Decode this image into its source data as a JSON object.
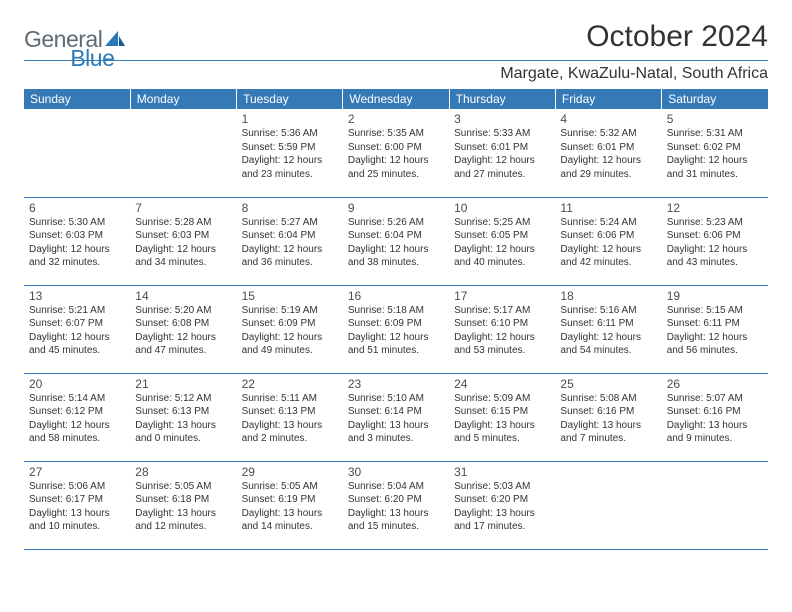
{
  "logo": {
    "general": "General",
    "blue": "Blue"
  },
  "title": "October 2024",
  "location": "Margate, KwaZulu-Natal, South Africa",
  "colors": {
    "header_bg": "#357ab7",
    "header_fg": "#ffffff",
    "rule": "#357ab7"
  },
  "day_headers": [
    "Sunday",
    "Monday",
    "Tuesday",
    "Wednesday",
    "Thursday",
    "Friday",
    "Saturday"
  ],
  "weeks": [
    [
      null,
      null,
      {
        "n": "1",
        "sr": "Sunrise: 5:36 AM",
        "ss": "Sunset: 5:59 PM",
        "d1": "Daylight: 12 hours",
        "d2": "and 23 minutes."
      },
      {
        "n": "2",
        "sr": "Sunrise: 5:35 AM",
        "ss": "Sunset: 6:00 PM",
        "d1": "Daylight: 12 hours",
        "d2": "and 25 minutes."
      },
      {
        "n": "3",
        "sr": "Sunrise: 5:33 AM",
        "ss": "Sunset: 6:01 PM",
        "d1": "Daylight: 12 hours",
        "d2": "and 27 minutes."
      },
      {
        "n": "4",
        "sr": "Sunrise: 5:32 AM",
        "ss": "Sunset: 6:01 PM",
        "d1": "Daylight: 12 hours",
        "d2": "and 29 minutes."
      },
      {
        "n": "5",
        "sr": "Sunrise: 5:31 AM",
        "ss": "Sunset: 6:02 PM",
        "d1": "Daylight: 12 hours",
        "d2": "and 31 minutes."
      }
    ],
    [
      {
        "n": "6",
        "sr": "Sunrise: 5:30 AM",
        "ss": "Sunset: 6:03 PM",
        "d1": "Daylight: 12 hours",
        "d2": "and 32 minutes."
      },
      {
        "n": "7",
        "sr": "Sunrise: 5:28 AM",
        "ss": "Sunset: 6:03 PM",
        "d1": "Daylight: 12 hours",
        "d2": "and 34 minutes."
      },
      {
        "n": "8",
        "sr": "Sunrise: 5:27 AM",
        "ss": "Sunset: 6:04 PM",
        "d1": "Daylight: 12 hours",
        "d2": "and 36 minutes."
      },
      {
        "n": "9",
        "sr": "Sunrise: 5:26 AM",
        "ss": "Sunset: 6:04 PM",
        "d1": "Daylight: 12 hours",
        "d2": "and 38 minutes."
      },
      {
        "n": "10",
        "sr": "Sunrise: 5:25 AM",
        "ss": "Sunset: 6:05 PM",
        "d1": "Daylight: 12 hours",
        "d2": "and 40 minutes."
      },
      {
        "n": "11",
        "sr": "Sunrise: 5:24 AM",
        "ss": "Sunset: 6:06 PM",
        "d1": "Daylight: 12 hours",
        "d2": "and 42 minutes."
      },
      {
        "n": "12",
        "sr": "Sunrise: 5:23 AM",
        "ss": "Sunset: 6:06 PM",
        "d1": "Daylight: 12 hours",
        "d2": "and 43 minutes."
      }
    ],
    [
      {
        "n": "13",
        "sr": "Sunrise: 5:21 AM",
        "ss": "Sunset: 6:07 PM",
        "d1": "Daylight: 12 hours",
        "d2": "and 45 minutes."
      },
      {
        "n": "14",
        "sr": "Sunrise: 5:20 AM",
        "ss": "Sunset: 6:08 PM",
        "d1": "Daylight: 12 hours",
        "d2": "and 47 minutes."
      },
      {
        "n": "15",
        "sr": "Sunrise: 5:19 AM",
        "ss": "Sunset: 6:09 PM",
        "d1": "Daylight: 12 hours",
        "d2": "and 49 minutes."
      },
      {
        "n": "16",
        "sr": "Sunrise: 5:18 AM",
        "ss": "Sunset: 6:09 PM",
        "d1": "Daylight: 12 hours",
        "d2": "and 51 minutes."
      },
      {
        "n": "17",
        "sr": "Sunrise: 5:17 AM",
        "ss": "Sunset: 6:10 PM",
        "d1": "Daylight: 12 hours",
        "d2": "and 53 minutes."
      },
      {
        "n": "18",
        "sr": "Sunrise: 5:16 AM",
        "ss": "Sunset: 6:11 PM",
        "d1": "Daylight: 12 hours",
        "d2": "and 54 minutes."
      },
      {
        "n": "19",
        "sr": "Sunrise: 5:15 AM",
        "ss": "Sunset: 6:11 PM",
        "d1": "Daylight: 12 hours",
        "d2": "and 56 minutes."
      }
    ],
    [
      {
        "n": "20",
        "sr": "Sunrise: 5:14 AM",
        "ss": "Sunset: 6:12 PM",
        "d1": "Daylight: 12 hours",
        "d2": "and 58 minutes."
      },
      {
        "n": "21",
        "sr": "Sunrise: 5:12 AM",
        "ss": "Sunset: 6:13 PM",
        "d1": "Daylight: 13 hours",
        "d2": "and 0 minutes."
      },
      {
        "n": "22",
        "sr": "Sunrise: 5:11 AM",
        "ss": "Sunset: 6:13 PM",
        "d1": "Daylight: 13 hours",
        "d2": "and 2 minutes."
      },
      {
        "n": "23",
        "sr": "Sunrise: 5:10 AM",
        "ss": "Sunset: 6:14 PM",
        "d1": "Daylight: 13 hours",
        "d2": "and 3 minutes."
      },
      {
        "n": "24",
        "sr": "Sunrise: 5:09 AM",
        "ss": "Sunset: 6:15 PM",
        "d1": "Daylight: 13 hours",
        "d2": "and 5 minutes."
      },
      {
        "n": "25",
        "sr": "Sunrise: 5:08 AM",
        "ss": "Sunset: 6:16 PM",
        "d1": "Daylight: 13 hours",
        "d2": "and 7 minutes."
      },
      {
        "n": "26",
        "sr": "Sunrise: 5:07 AM",
        "ss": "Sunset: 6:16 PM",
        "d1": "Daylight: 13 hours",
        "d2": "and 9 minutes."
      }
    ],
    [
      {
        "n": "27",
        "sr": "Sunrise: 5:06 AM",
        "ss": "Sunset: 6:17 PM",
        "d1": "Daylight: 13 hours",
        "d2": "and 10 minutes."
      },
      {
        "n": "28",
        "sr": "Sunrise: 5:05 AM",
        "ss": "Sunset: 6:18 PM",
        "d1": "Daylight: 13 hours",
        "d2": "and 12 minutes."
      },
      {
        "n": "29",
        "sr": "Sunrise: 5:05 AM",
        "ss": "Sunset: 6:19 PM",
        "d1": "Daylight: 13 hours",
        "d2": "and 14 minutes."
      },
      {
        "n": "30",
        "sr": "Sunrise: 5:04 AM",
        "ss": "Sunset: 6:20 PM",
        "d1": "Daylight: 13 hours",
        "d2": "and 15 minutes."
      },
      {
        "n": "31",
        "sr": "Sunrise: 5:03 AM",
        "ss": "Sunset: 6:20 PM",
        "d1": "Daylight: 13 hours",
        "d2": "and 17 minutes."
      },
      null,
      null
    ]
  ]
}
